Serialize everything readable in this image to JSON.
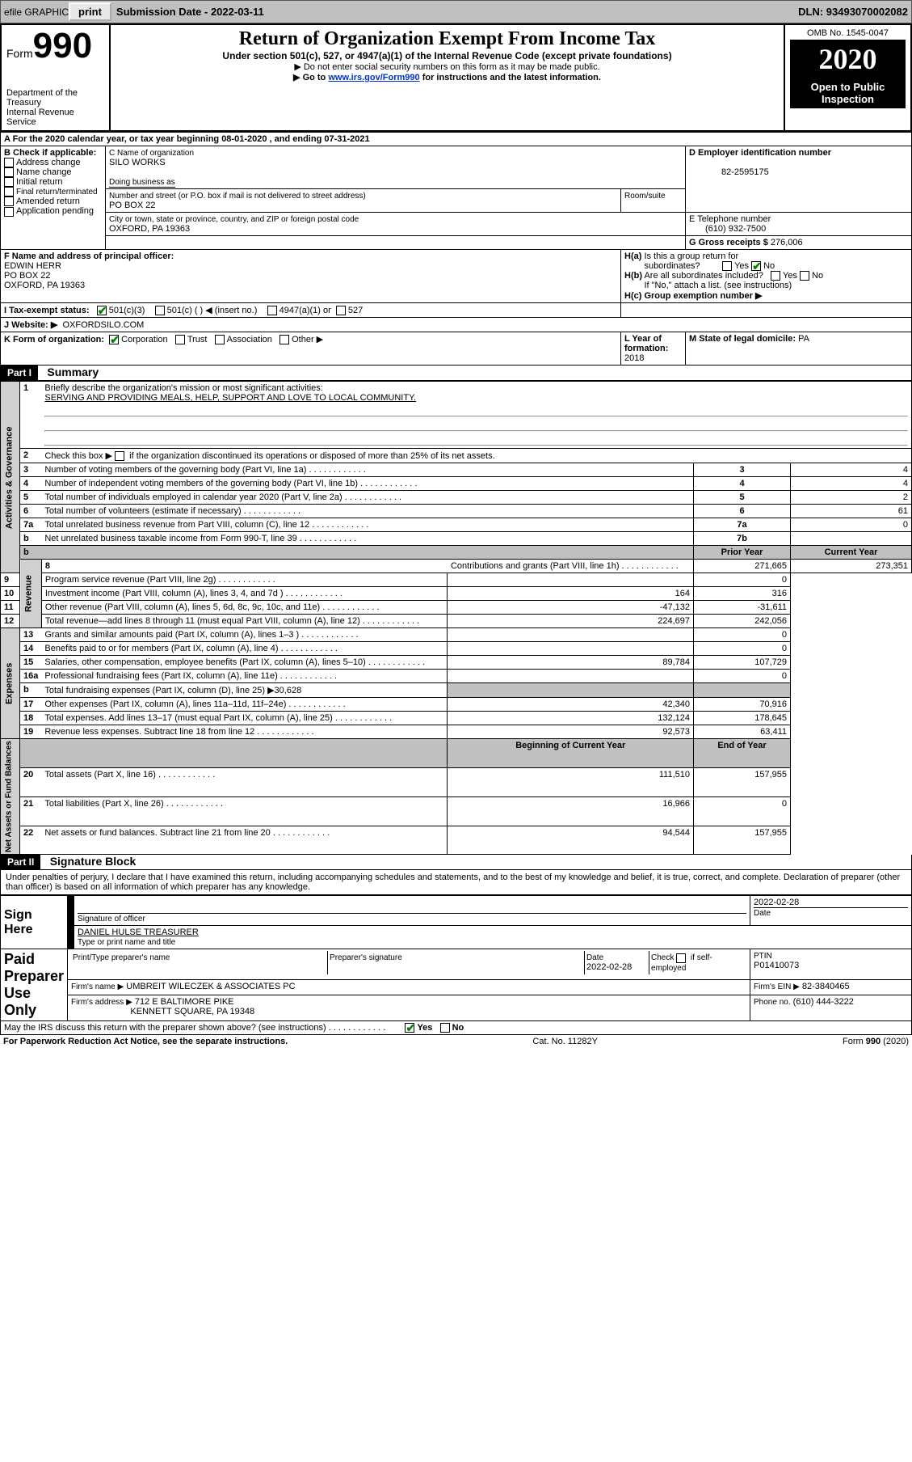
{
  "topbar": {
    "efile": "efile GRAPHIC",
    "print": "print",
    "submission": "Submission Date  -  2022-03-11",
    "dln": "DLN: 93493070002082"
  },
  "header": {
    "form_label": "Form",
    "form_no": "990",
    "title": "Return of Organization Exempt From Income Tax",
    "subtitle": "Under section 501(c), 527, or 4947(a)(1) of the Internal Revenue Code (except private foundations)",
    "instr1": "▶ Do not enter social security numbers on this form as it may be made public.",
    "instr2_pre": "▶ Go to ",
    "instr2_link": "www.irs.gov/Form990",
    "instr2_post": " for instructions and the latest information.",
    "dept1": "Department of the Treasury",
    "dept2": "Internal Revenue Service",
    "omb": "OMB No. 1545-0047",
    "year": "2020",
    "open_public": "Open to Public Inspection"
  },
  "sectionA": {
    "line": "A For the 2020 calendar year, or tax year beginning 08-01-2020   , and ending 07-31-2021",
    "b_label": "B Check if applicable:",
    "b_opts": [
      "Address change",
      "Name change",
      "Initial return",
      "Final return/terminated",
      "Amended return",
      "Application pending"
    ],
    "c_label": "C Name of organization",
    "c_name": "SILO WORKS",
    "dba_label": "Doing business as",
    "addr_label": "Number and street (or P.O. box if mail is not delivered to street address)",
    "room_label": "Room/suite",
    "addr": "PO BOX 22",
    "city_label": "City or town, state or province, country, and ZIP or foreign postal code",
    "city": "OXFORD, PA  19363",
    "d_label": "D Employer identification number",
    "d_val": "82-2595175",
    "e_label": "E Telephone number",
    "e_val": "(610) 932-7500",
    "g_label": "G Gross receipts $",
    "g_val": "276,006",
    "f_label": "F Name and address of principal officer:",
    "f_name": "EDWIN HERR",
    "f_addr": "PO BOX 22",
    "f_city": "OXFORD, PA  19363",
    "ha_label": "H(a)  Is this a group return for subordinates?",
    "hb_label": "H(b)  Are all subordinates included?",
    "hb_note": "If \"No,\" attach a list. (see instructions)",
    "hc_label": "H(c)  Group exemption number ▶",
    "yes": "Yes",
    "no": "No",
    "i_label": "I  Tax-exempt status:",
    "i_501c3": "501(c)(3)",
    "i_501c": "501(c) (  ) ◀ (insert no.)",
    "i_4947": "4947(a)(1) or",
    "i_527": "527",
    "j_label": "J  Website: ▶",
    "j_val": "OXFORDSILO.COM",
    "k_label": "K Form of organization:",
    "k_corp": "Corporation",
    "k_trust": "Trust",
    "k_assoc": "Association",
    "k_other": "Other ▶",
    "l_label": "L Year of formation:",
    "l_val": "2018",
    "m_label": "M State of legal domicile:",
    "m_val": "PA"
  },
  "part1": {
    "head": "Part I",
    "title": "Summary",
    "line1": "Briefly describe the organization's mission or most significant activities:",
    "mission": "SERVING AND PROVIDING MEALS, HELP, SUPPORT AND LOVE TO LOCAL COMMUNITY.",
    "line2": "Check this box ▶      if the organization discontinued its operations or disposed of more than 25% of its net assets.",
    "rows_ag": [
      {
        "n": "3",
        "t": "Number of voting members of the governing body (Part VI, line 1a)",
        "box": "3",
        "v": "4"
      },
      {
        "n": "4",
        "t": "Number of independent voting members of the governing body (Part VI, line 1b)",
        "box": "4",
        "v": "4"
      },
      {
        "n": "5",
        "t": "Total number of individuals employed in calendar year 2020 (Part V, line 2a)",
        "box": "5",
        "v": "2"
      },
      {
        "n": "6",
        "t": "Total number of volunteers (estimate if necessary)",
        "box": "6",
        "v": "61"
      },
      {
        "n": "7a",
        "t": "Total unrelated business revenue from Part VIII, column (C), line 12",
        "box": "7a",
        "v": "0"
      },
      {
        "n": "b",
        "t": "Net unrelated business taxable income from Form 990-T, line 39",
        "box": "7b",
        "v": ""
      }
    ],
    "col_prior": "Prior Year",
    "col_current": "Current Year",
    "col_boy": "Beginning of Current Year",
    "col_eoy": "End of Year",
    "rev": [
      {
        "n": "8",
        "t": "Contributions and grants (Part VIII, line 1h)",
        "p": "271,665",
        "c": "273,351"
      },
      {
        "n": "9",
        "t": "Program service revenue (Part VIII, line 2g)",
        "p": "",
        "c": "0"
      },
      {
        "n": "10",
        "t": "Investment income (Part VIII, column (A), lines 3, 4, and 7d )",
        "p": "164",
        "c": "316"
      },
      {
        "n": "11",
        "t": "Other revenue (Part VIII, column (A), lines 5, 6d, 8c, 9c, 10c, and 11e)",
        "p": "-47,132",
        "c": "-31,611"
      },
      {
        "n": "12",
        "t": "Total revenue—add lines 8 through 11 (must equal Part VIII, column (A), line 12)",
        "p": "224,697",
        "c": "242,056"
      }
    ],
    "exp": [
      {
        "n": "13",
        "t": "Grants and similar amounts paid (Part IX, column (A), lines 1–3 )",
        "p": "",
        "c": "0"
      },
      {
        "n": "14",
        "t": "Benefits paid to or for members (Part IX, column (A), line 4)",
        "p": "",
        "c": "0"
      },
      {
        "n": "15",
        "t": "Salaries, other compensation, employee benefits (Part IX, column (A), lines 5–10)",
        "p": "89,784",
        "c": "107,729"
      },
      {
        "n": "16a",
        "t": "Professional fundraising fees (Part IX, column (A), line 11e)",
        "p": "",
        "c": "0"
      },
      {
        "n": "b",
        "t": "Total fundraising expenses (Part IX, column (D), line 25) ▶30,628",
        "shaded": true
      },
      {
        "n": "17",
        "t": "Other expenses (Part IX, column (A), lines 11a–11d, 11f–24e)",
        "p": "42,340",
        "c": "70,916"
      },
      {
        "n": "18",
        "t": "Total expenses. Add lines 13–17 (must equal Part IX, column (A), line 25)",
        "p": "132,124",
        "c": "178,645"
      },
      {
        "n": "19",
        "t": "Revenue less expenses. Subtract line 18 from line 12",
        "p": "92,573",
        "c": "63,411"
      }
    ],
    "net": [
      {
        "n": "20",
        "t": "Total assets (Part X, line 16)",
        "p": "111,510",
        "c": "157,955"
      },
      {
        "n": "21",
        "t": "Total liabilities (Part X, line 26)",
        "p": "16,966",
        "c": "0"
      },
      {
        "n": "22",
        "t": "Net assets or fund balances. Subtract line 21 from line 20",
        "p": "94,544",
        "c": "157,955"
      }
    ],
    "label_ag": "Activities & Governance",
    "label_rev": "Revenue",
    "label_exp": "Expenses",
    "label_net": "Net Assets or Fund Balances"
  },
  "part2": {
    "head": "Part II",
    "title": "Signature Block",
    "perjury": "Under penalties of perjury, I declare that I have examined this return, including accompanying schedules and statements, and to the best of my knowledge and belief, it is true, correct, and complete. Declaration of preparer (other than officer) is based on all information of which preparer has any knowledge.",
    "sign_here": "Sign Here",
    "sig_officer": "Signature of officer",
    "date": "Date",
    "sig_date": "2022-02-28",
    "officer_name": "DANIEL HULSE  TREASURER",
    "type_name": "Type or print name and title",
    "paid": "Paid Preparer Use Only",
    "prep_name_label": "Print/Type preparer's name",
    "prep_sig_label": "Preparer's signature",
    "prep_date": "2022-02-28",
    "self_emp": "Check      if self-employed",
    "ptin_label": "PTIN",
    "ptin": "P01410073",
    "firm_name_label": "Firm's name   ▶",
    "firm_name": "UMBREIT WILECZEK & ASSOCIATES PC",
    "firm_ein_label": "Firm's EIN ▶",
    "firm_ein": "82-3840465",
    "firm_addr_label": "Firm's address ▶",
    "firm_addr": "712 E BALTIMORE PIKE",
    "firm_city": "KENNETT SQUARE, PA  19348",
    "phone_label": "Phone no.",
    "phone": "(610) 444-3222",
    "discuss": "May the IRS discuss this return with the preparer shown above? (see instructions)"
  },
  "footer": {
    "paperwork": "For Paperwork Reduction Act Notice, see the separate instructions.",
    "cat": "Cat. No. 11282Y",
    "form": "Form 990 (2020)"
  }
}
